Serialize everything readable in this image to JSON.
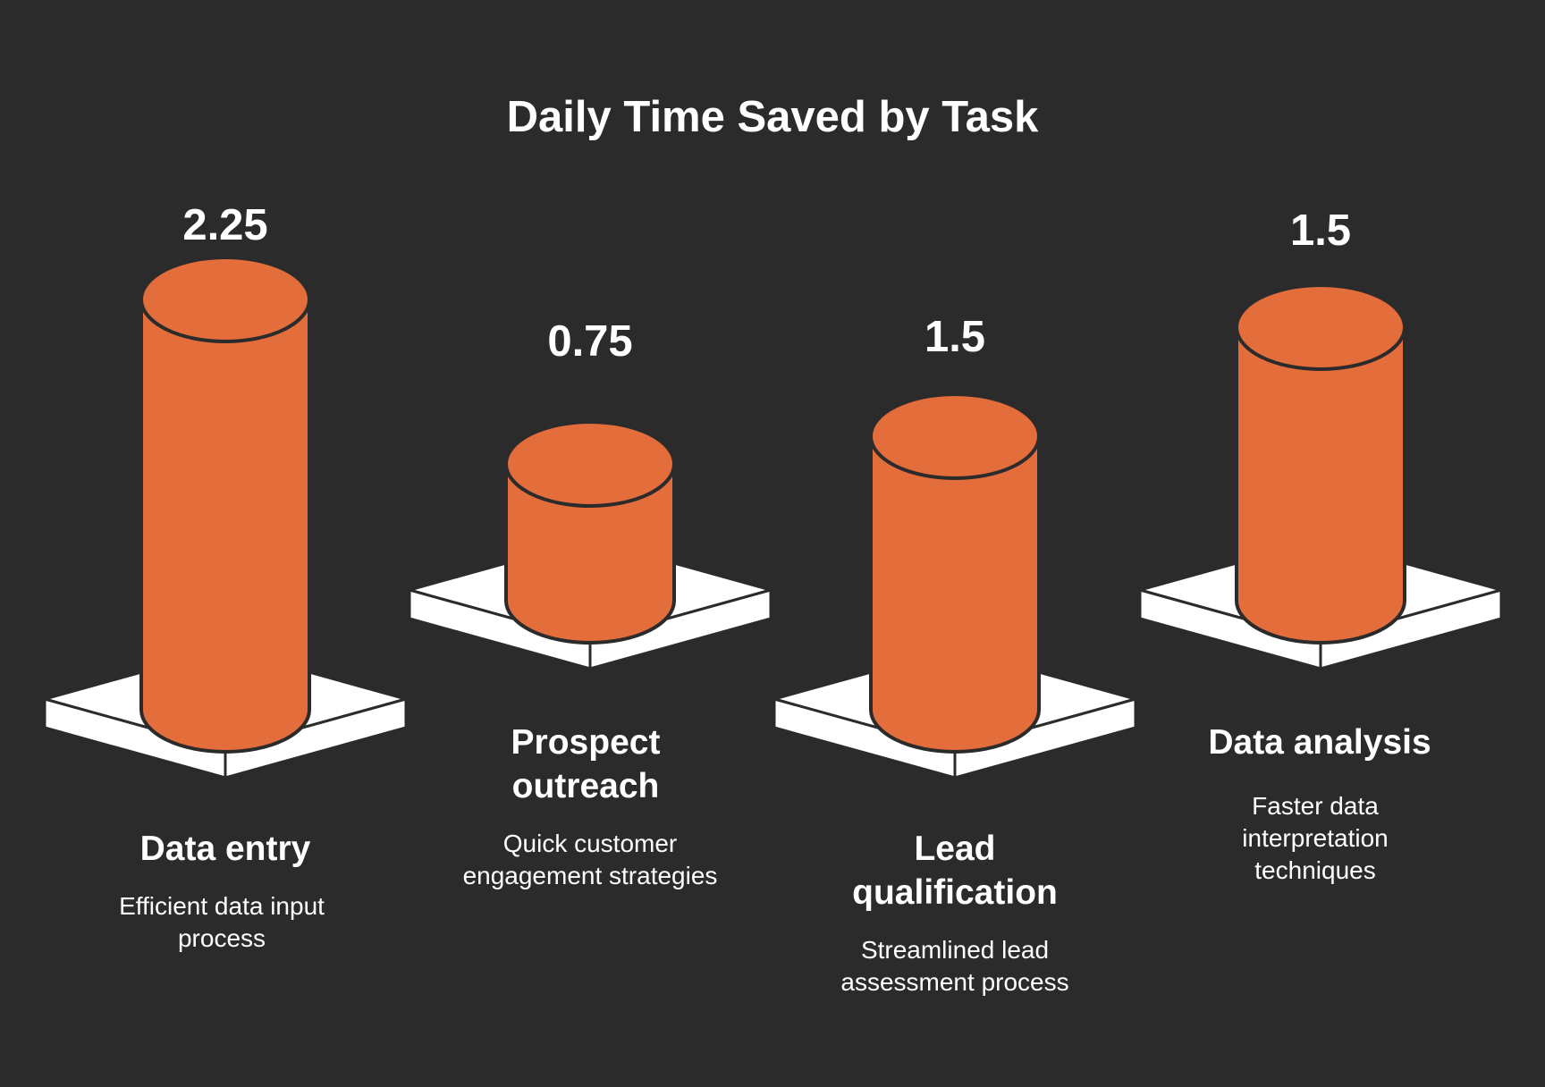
{
  "colors": {
    "background": "#2b2b2b",
    "cylinder": "#e46d3c",
    "outline": "#2b2b2b",
    "base_top": "#ffffff",
    "base_side": "#ffffff",
    "text": "#ffffff"
  },
  "chart_data": {
    "type": "bar",
    "style": "3d-cylinder",
    "title": "Daily Time Saved by Task",
    "categories": [
      "Data entry",
      "Prospect outreach",
      "Lead qualification",
      "Data analysis"
    ],
    "descriptions": [
      "Efficient data input process",
      "Quick customer engagement strategies",
      "Streamlined lead assessment process",
      "Faster data interpretation techniques"
    ],
    "values": [
      2.25,
      0.75,
      1.5,
      1.5
    ],
    "value_labels": [
      "2.25",
      "0.75",
      "1.5",
      "1.5"
    ],
    "xlabel": "",
    "ylabel": "",
    "grid": false,
    "legend": "none"
  }
}
